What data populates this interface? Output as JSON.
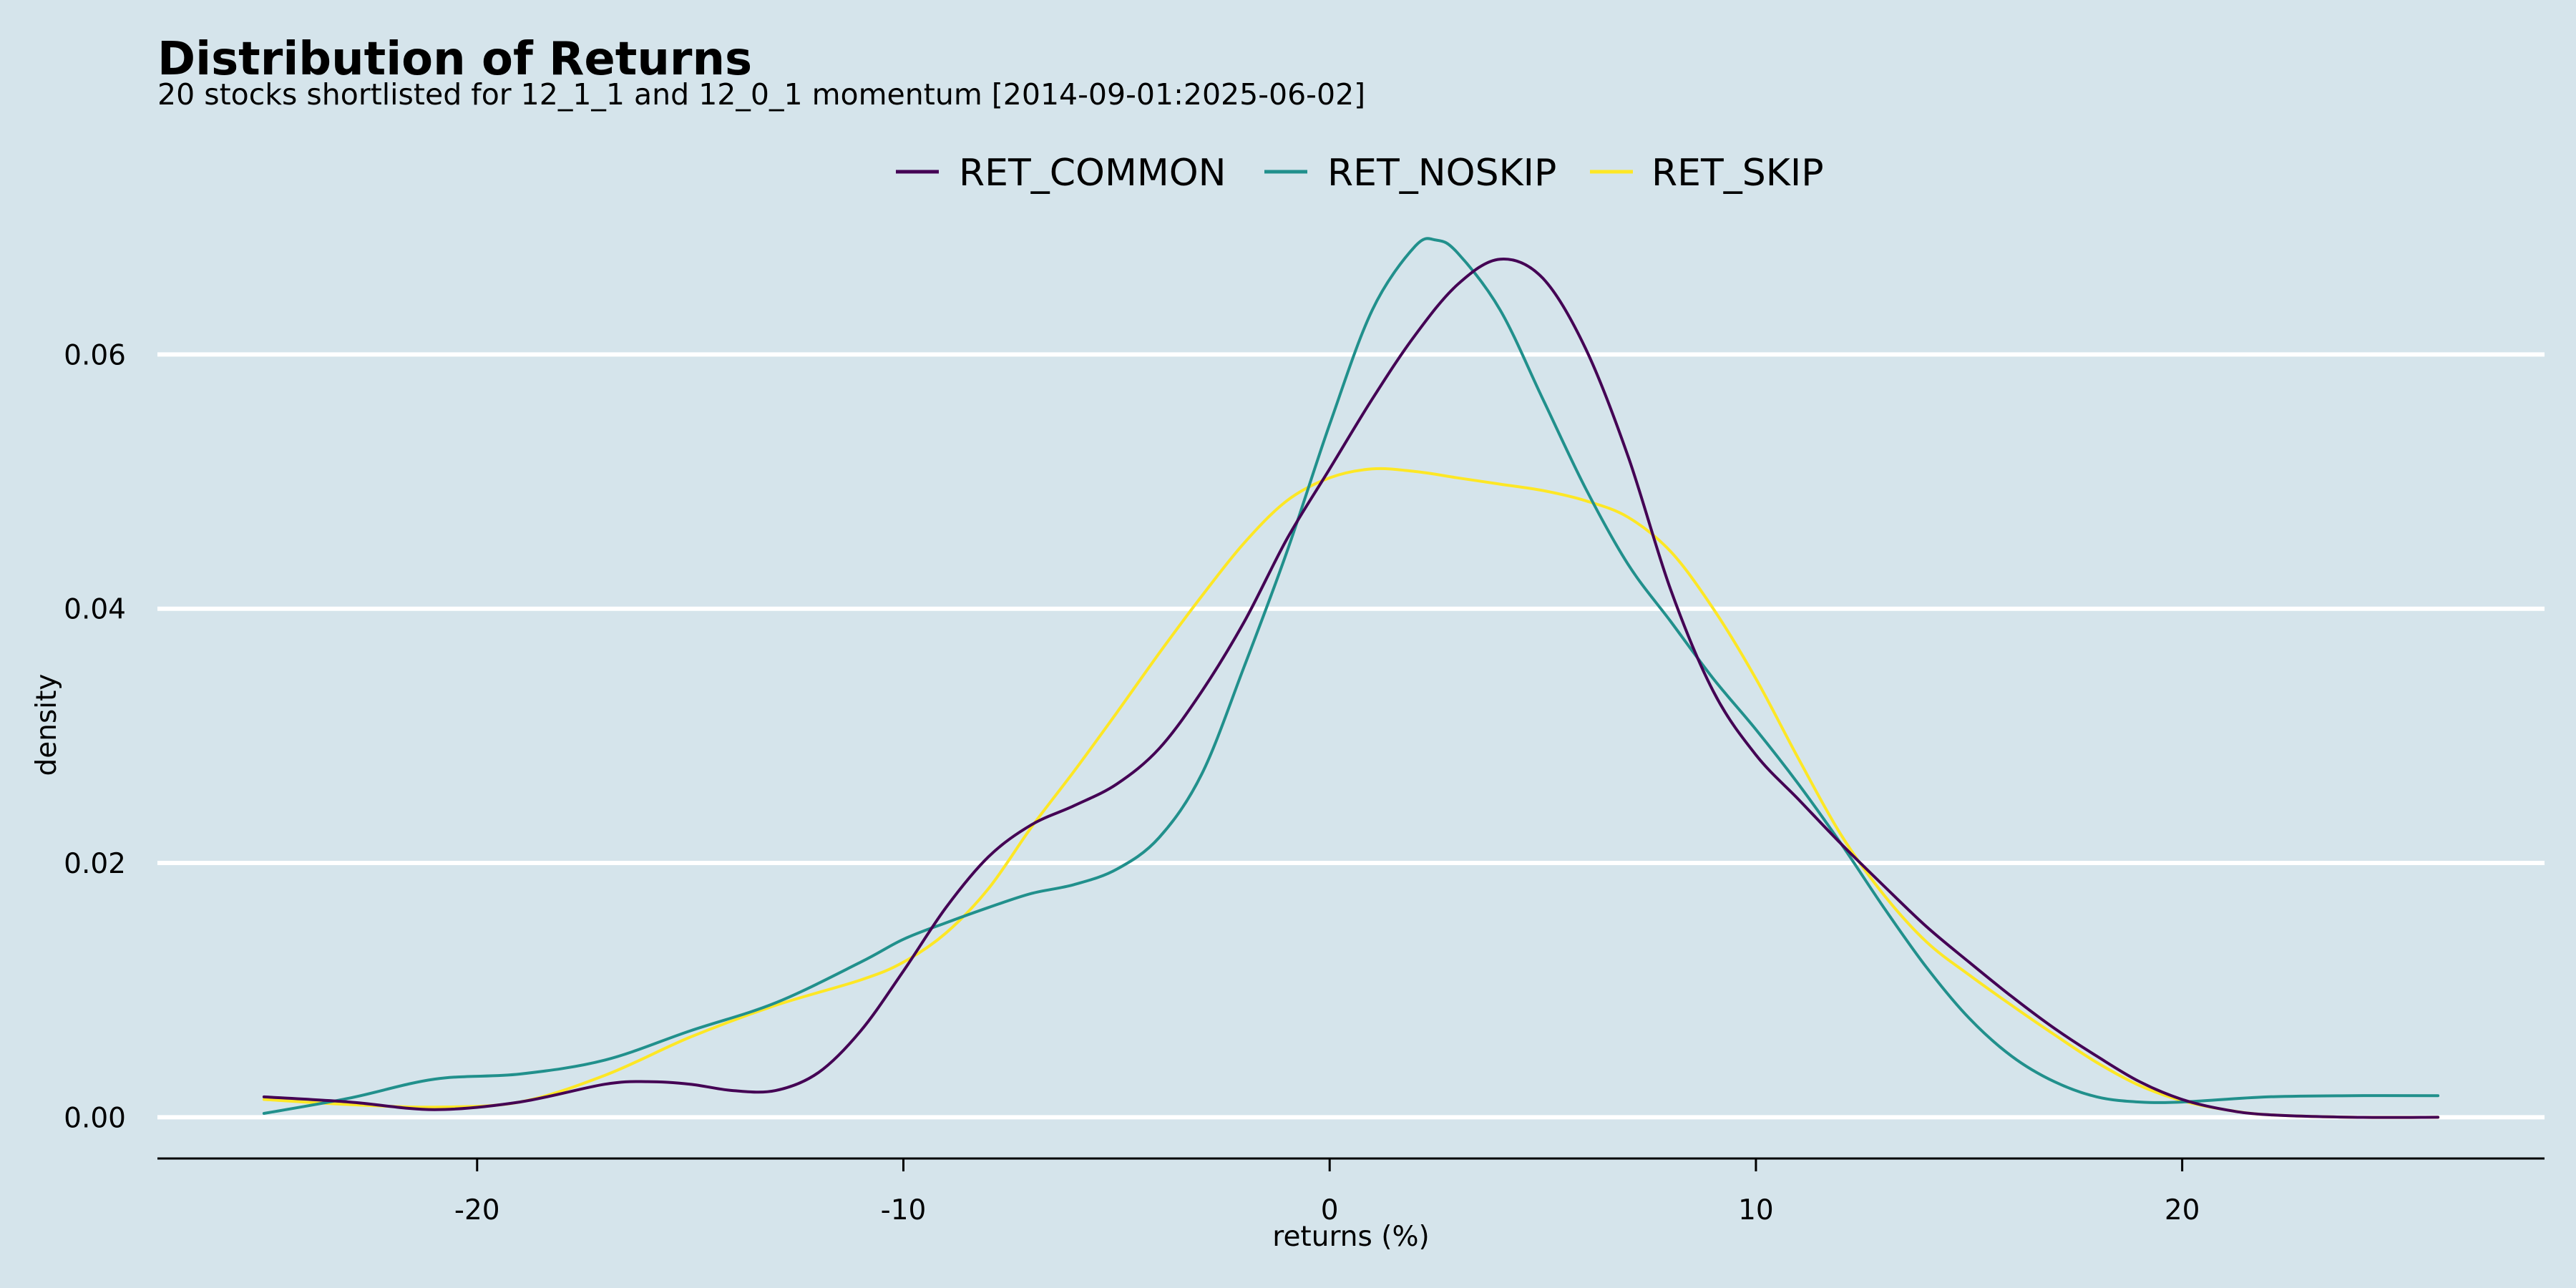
{
  "chart_data": {
    "type": "line",
    "title": "Distribution of Returns",
    "subtitle": "20 stocks shortlisted for 12_1_1 and 12_0_1 momentum [2014-09-01:2025-06-02]",
    "xlabel": "returns (%)",
    "ylabel": "density",
    "xlim": [
      -27.5,
      28.5
    ],
    "ylim": [
      -0.0033,
      0.071
    ],
    "xticks": [
      -20,
      -10,
      0,
      10,
      20
    ],
    "xtick_labels": [
      "-20",
      "-10",
      "0",
      "10",
      "20"
    ],
    "yticks": [
      0.0,
      0.02,
      0.04,
      0.06
    ],
    "ytick_labels": [
      "0.00",
      "0.02",
      "0.04",
      "0.06"
    ],
    "grid": "horizontal major",
    "legend_position": "top",
    "background_color": "#d5e4eb",
    "grid_color": "#ffffff",
    "series": [
      {
        "name": "RET_COMMON",
        "color": "#440154",
        "points": [
          [
            -25,
            0.0016
          ],
          [
            -23,
            0.0012
          ],
          [
            -21,
            0.0006
          ],
          [
            -19,
            0.0012
          ],
          [
            -17,
            0.0026
          ],
          [
            -16,
            0.0028
          ],
          [
            -15,
            0.0026
          ],
          [
            -14,
            0.0021
          ],
          [
            -13,
            0.0021
          ],
          [
            -12,
            0.0035
          ],
          [
            -11,
            0.0068
          ],
          [
            -10,
            0.0115
          ],
          [
            -9,
            0.0165
          ],
          [
            -8,
            0.0205
          ],
          [
            -7,
            0.023
          ],
          [
            -6,
            0.0245
          ],
          [
            -5,
            0.0262
          ],
          [
            -4,
            0.029
          ],
          [
            -3,
            0.0335
          ],
          [
            -2,
            0.039
          ],
          [
            -1,
            0.0455
          ],
          [
            0,
            0.051
          ],
          [
            1,
            0.0565
          ],
          [
            2,
            0.0615
          ],
          [
            3,
            0.0655
          ],
          [
            4,
            0.0675
          ],
          [
            5,
            0.066
          ],
          [
            6,
            0.0605
          ],
          [
            7,
            0.052
          ],
          [
            8,
            0.0415
          ],
          [
            9,
            0.0335
          ],
          [
            10,
            0.0285
          ],
          [
            11,
            0.025
          ],
          [
            12,
            0.0215
          ],
          [
            13,
            0.0182
          ],
          [
            14,
            0.015
          ],
          [
            15,
            0.0122
          ],
          [
            16,
            0.0095
          ],
          [
            17,
            0.007
          ],
          [
            18,
            0.0048
          ],
          [
            19,
            0.0028
          ],
          [
            20,
            0.0014
          ],
          [
            21,
            0.0006
          ],
          [
            22,
            0.0002
          ],
          [
            24,
            0.0
          ],
          [
            26,
            0.0
          ]
        ]
      },
      {
        "name": "RET_NOSKIP",
        "color": "#21908c",
        "points": [
          [
            -25,
            0.0003
          ],
          [
            -23,
            0.0015
          ],
          [
            -21,
            0.003
          ],
          [
            -19,
            0.0034
          ],
          [
            -17,
            0.0045
          ],
          [
            -15,
            0.0068
          ],
          [
            -13,
            0.009
          ],
          [
            -11,
            0.0122
          ],
          [
            -10,
            0.014
          ],
          [
            -9,
            0.0153
          ],
          [
            -8,
            0.0165
          ],
          [
            -7,
            0.0176
          ],
          [
            -6,
            0.0183
          ],
          [
            -5,
            0.0195
          ],
          [
            -4,
            0.022
          ],
          [
            -3,
            0.027
          ],
          [
            -2,
            0.0355
          ],
          [
            -1,
            0.0445
          ],
          [
            0,
            0.0545
          ],
          [
            1,
            0.0635
          ],
          [
            2,
            0.0685
          ],
          [
            2.5,
            0.069
          ],
          [
            3,
            0.068
          ],
          [
            4,
            0.0635
          ],
          [
            5,
            0.0565
          ],
          [
            6,
            0.0495
          ],
          [
            7,
            0.0435
          ],
          [
            8,
            0.039
          ],
          [
            9,
            0.0345
          ],
          [
            10,
            0.0305
          ],
          [
            11,
            0.0262
          ],
          [
            12,
            0.0215
          ],
          [
            13,
            0.0165
          ],
          [
            14,
            0.0118
          ],
          [
            15,
            0.0078
          ],
          [
            16,
            0.0048
          ],
          [
            17,
            0.0028
          ],
          [
            18,
            0.0016
          ],
          [
            19,
            0.0012
          ],
          [
            20,
            0.0012
          ],
          [
            22,
            0.0016
          ],
          [
            24,
            0.0017
          ],
          [
            26,
            0.0017
          ]
        ]
      },
      {
        "name": "RET_SKIP",
        "color": "#fde725",
        "points": [
          [
            -25,
            0.0014
          ],
          [
            -23,
            0.001
          ],
          [
            -21,
            0.0008
          ],
          [
            -19,
            0.0012
          ],
          [
            -17,
            0.0033
          ],
          [
            -15,
            0.0063
          ],
          [
            -13,
            0.0088
          ],
          [
            -11,
            0.0108
          ],
          [
            -10,
            0.0122
          ],
          [
            -9,
            0.0145
          ],
          [
            -8,
            0.018
          ],
          [
            -7,
            0.0228
          ],
          [
            -6,
            0.0272
          ],
          [
            -5,
            0.0318
          ],
          [
            -4,
            0.0365
          ],
          [
            -3,
            0.041
          ],
          [
            -2,
            0.0452
          ],
          [
            -1,
            0.0485
          ],
          [
            0,
            0.0503
          ],
          [
            1,
            0.051
          ],
          [
            2,
            0.0508
          ],
          [
            3,
            0.0503
          ],
          [
            4,
            0.0498
          ],
          [
            5,
            0.0493
          ],
          [
            6,
            0.0485
          ],
          [
            7,
            0.0472
          ],
          [
            8,
            0.0445
          ],
          [
            9,
            0.04
          ],
          [
            10,
            0.0345
          ],
          [
            11,
            0.0282
          ],
          [
            12,
            0.0222
          ],
          [
            13,
            0.0175
          ],
          [
            14,
            0.0138
          ],
          [
            15,
            0.0112
          ],
          [
            16,
            0.0088
          ],
          [
            17,
            0.0065
          ],
          [
            18,
            0.0043
          ],
          [
            19,
            0.0025
          ],
          [
            20,
            0.0013
          ],
          [
            21,
            0.0006
          ],
          [
            22,
            0.0002
          ],
          [
            24,
            0.0
          ],
          [
            26,
            0.0
          ]
        ]
      }
    ]
  }
}
